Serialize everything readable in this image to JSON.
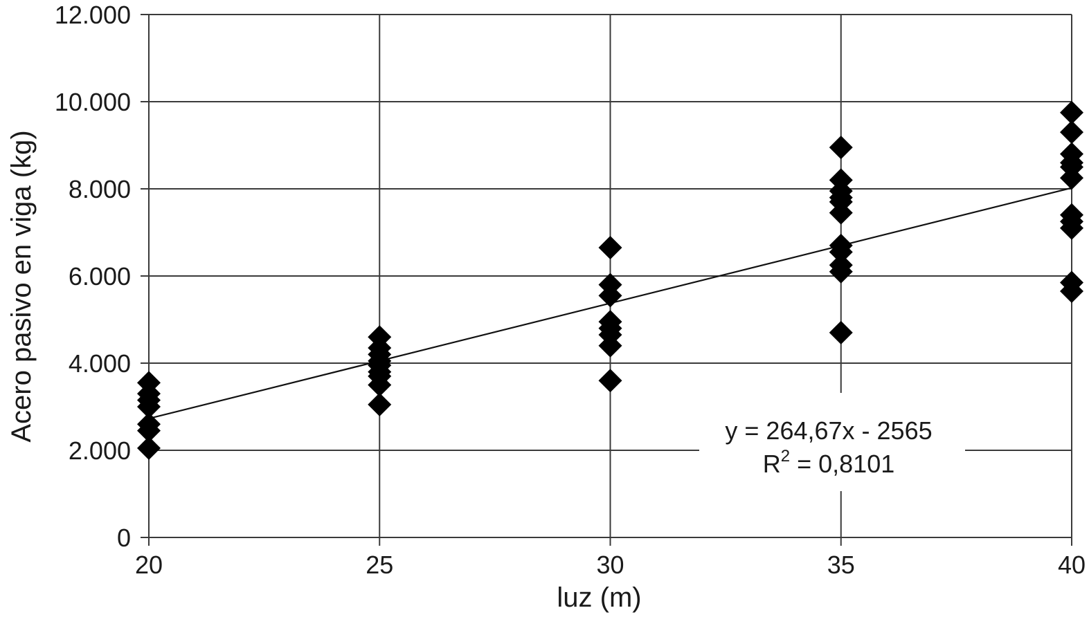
{
  "chart_data": {
    "type": "scatter",
    "title": "",
    "xlabel": "luz (m)",
    "ylabel": "Acero pasivo en viga (kg)",
    "xlim": [
      20,
      40
    ],
    "ylim": [
      0,
      12000
    ],
    "x_ticks": [
      20,
      25,
      30,
      35,
      40
    ],
    "x_tick_labels": [
      "20",
      "25",
      "30",
      "35",
      "40"
    ],
    "y_ticks": [
      0,
      2000,
      4000,
      6000,
      8000,
      10000,
      12000
    ],
    "y_tick_labels": [
      "0",
      "2.000",
      "4.000",
      "6.000",
      "8.000",
      "10.000",
      "12.000"
    ],
    "grid": true,
    "legend": "none",
    "marker": "diamond",
    "marker_color": "#000000",
    "series": [
      {
        "points": [
          {
            "x": 20,
            "y": 3550
          },
          {
            "x": 20,
            "y": 3300
          },
          {
            "x": 20,
            "y": 3150
          },
          {
            "x": 20,
            "y": 3000
          },
          {
            "x": 20,
            "y": 2600
          },
          {
            "x": 20,
            "y": 2450
          },
          {
            "x": 20,
            "y": 2050
          },
          {
            "x": 25,
            "y": 4600
          },
          {
            "x": 25,
            "y": 4350
          },
          {
            "x": 25,
            "y": 4200
          },
          {
            "x": 25,
            "y": 4050
          },
          {
            "x": 25,
            "y": 3950
          },
          {
            "x": 25,
            "y": 3800
          },
          {
            "x": 25,
            "y": 3700
          },
          {
            "x": 25,
            "y": 3500
          },
          {
            "x": 25,
            "y": 3050
          },
          {
            "x": 30,
            "y": 6650
          },
          {
            "x": 30,
            "y": 5800
          },
          {
            "x": 30,
            "y": 5550
          },
          {
            "x": 30,
            "y": 4950
          },
          {
            "x": 30,
            "y": 4800
          },
          {
            "x": 30,
            "y": 4650
          },
          {
            "x": 30,
            "y": 4400
          },
          {
            "x": 30,
            "y": 3600
          },
          {
            "x": 35,
            "y": 8950
          },
          {
            "x": 35,
            "y": 8200
          },
          {
            "x": 35,
            "y": 7950
          },
          {
            "x": 35,
            "y": 7800
          },
          {
            "x": 35,
            "y": 7700
          },
          {
            "x": 35,
            "y": 7450
          },
          {
            "x": 35,
            "y": 6700
          },
          {
            "x": 35,
            "y": 6550
          },
          {
            "x": 35,
            "y": 6250
          },
          {
            "x": 35,
            "y": 6100
          },
          {
            "x": 35,
            "y": 4700
          },
          {
            "x": 40,
            "y": 9750
          },
          {
            "x": 40,
            "y": 9300
          },
          {
            "x": 40,
            "y": 8800
          },
          {
            "x": 40,
            "y": 8600
          },
          {
            "x": 40,
            "y": 8500
          },
          {
            "x": 40,
            "y": 8250
          },
          {
            "x": 40,
            "y": 7400
          },
          {
            "x": 40,
            "y": 7250
          },
          {
            "x": 40,
            "y": 7100
          },
          {
            "x": 40,
            "y": 5850
          },
          {
            "x": 40,
            "y": 5650
          }
        ]
      }
    ],
    "trendline": {
      "type": "linear",
      "slope": 264.67,
      "intercept": -2565,
      "x_range": [
        20,
        40
      ],
      "equation_label": "y = 264,67x - 2565",
      "r2_prefix": "R",
      "r2_sup": "2",
      "r2_suffix": " = 0,8101"
    }
  }
}
